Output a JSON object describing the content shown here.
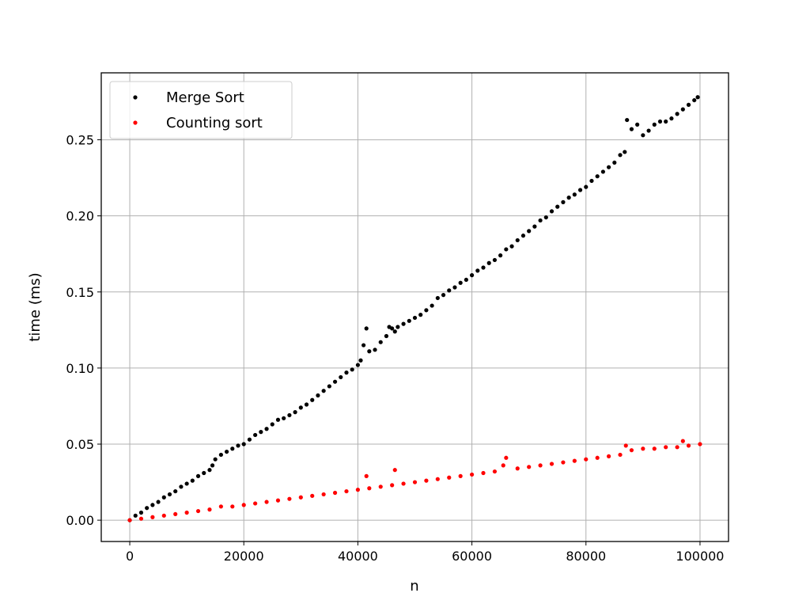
{
  "chart_data": {
    "type": "scatter",
    "xlabel": "n",
    "ylabel": "time (ms)",
    "xlim": [
      -5000,
      105000
    ],
    "ylim": [
      -0.014,
      0.294
    ],
    "xticks": [
      0,
      20000,
      40000,
      60000,
      80000,
      100000
    ],
    "yticks": [
      0.0,
      0.05,
      0.1,
      0.15,
      0.2,
      0.25
    ],
    "xtick_labels": [
      "0",
      "20000",
      "40000",
      "60000",
      "80000",
      "100000"
    ],
    "ytick_labels": [
      "0.00",
      "0.05",
      "0.10",
      "0.15",
      "0.20",
      "0.25"
    ],
    "grid": true,
    "legend_position": "top-left",
    "series": [
      {
        "name": "Merge Sort",
        "color": "#000000",
        "x": [
          0,
          1000,
          2000,
          3000,
          4000,
          5000,
          6000,
          7000,
          8000,
          9000,
          10000,
          11000,
          12000,
          13000,
          14000,
          14500,
          15000,
          16000,
          17000,
          18000,
          19000,
          20000,
          21000,
          22000,
          23000,
          24000,
          25000,
          26000,
          27000,
          28000,
          29000,
          30000,
          31000,
          32000,
          33000,
          34000,
          35000,
          36000,
          37000,
          38000,
          39000,
          40000,
          40500,
          41000,
          41500,
          42000,
          43000,
          44000,
          45000,
          45500,
          46000,
          46500,
          47000,
          48000,
          49000,
          50000,
          51000,
          52000,
          53000,
          54000,
          55000,
          56000,
          57000,
          58000,
          59000,
          60000,
          61000,
          62000,
          63000,
          64000,
          65000,
          66000,
          67000,
          68000,
          69000,
          70000,
          71000,
          72000,
          73000,
          74000,
          75000,
          76000,
          77000,
          78000,
          79000,
          80000,
          81000,
          82000,
          83000,
          84000,
          85000,
          86000,
          86800,
          87200,
          88000,
          89000,
          90000,
          91000,
          92000,
          93000,
          94000,
          95000,
          96000,
          97000,
          98000,
          99000,
          99600
        ],
        "y": [
          0.0,
          0.003,
          0.005,
          0.008,
          0.01,
          0.012,
          0.015,
          0.017,
          0.019,
          0.022,
          0.024,
          0.026,
          0.029,
          0.031,
          0.033,
          0.036,
          0.04,
          0.043,
          0.045,
          0.047,
          0.049,
          0.05,
          0.053,
          0.056,
          0.058,
          0.06,
          0.063,
          0.066,
          0.067,
          0.069,
          0.071,
          0.074,
          0.076,
          0.079,
          0.082,
          0.085,
          0.088,
          0.091,
          0.094,
          0.097,
          0.099,
          0.102,
          0.105,
          0.115,
          0.126,
          0.111,
          0.112,
          0.117,
          0.121,
          0.127,
          0.126,
          0.124,
          0.127,
          0.129,
          0.131,
          0.133,
          0.135,
          0.138,
          0.141,
          0.146,
          0.148,
          0.151,
          0.153,
          0.156,
          0.158,
          0.161,
          0.164,
          0.166,
          0.169,
          0.171,
          0.174,
          0.178,
          0.18,
          0.184,
          0.187,
          0.19,
          0.193,
          0.197,
          0.199,
          0.203,
          0.206,
          0.209,
          0.212,
          0.214,
          0.217,
          0.219,
          0.223,
          0.226,
          0.229,
          0.232,
          0.235,
          0.24,
          0.242,
          0.263,
          0.257,
          0.26,
          0.253,
          0.256,
          0.26,
          0.262,
          0.262,
          0.264,
          0.267,
          0.27,
          0.273,
          0.276,
          0.278
        ]
      },
      {
        "name": "Counting sort",
        "color": "#ff0000",
        "x": [
          0,
          2000,
          4000,
          6000,
          8000,
          10000,
          12000,
          14000,
          16000,
          18000,
          20000,
          22000,
          24000,
          26000,
          28000,
          30000,
          32000,
          34000,
          36000,
          38000,
          40000,
          41500,
          42000,
          44000,
          46000,
          46500,
          48000,
          50000,
          52000,
          54000,
          56000,
          58000,
          60000,
          62000,
          64000,
          65500,
          66000,
          68000,
          70000,
          72000,
          74000,
          76000,
          78000,
          80000,
          82000,
          84000,
          86000,
          87000,
          88000,
          90000,
          92000,
          94000,
          96000,
          97000,
          98000,
          100000
        ],
        "y": [
          0.0,
          0.001,
          0.002,
          0.003,
          0.004,
          0.005,
          0.006,
          0.007,
          0.009,
          0.009,
          0.01,
          0.011,
          0.012,
          0.013,
          0.014,
          0.015,
          0.016,
          0.017,
          0.018,
          0.019,
          0.02,
          0.029,
          0.021,
          0.022,
          0.023,
          0.033,
          0.024,
          0.025,
          0.026,
          0.027,
          0.028,
          0.029,
          0.03,
          0.031,
          0.032,
          0.036,
          0.041,
          0.034,
          0.035,
          0.036,
          0.037,
          0.038,
          0.039,
          0.04,
          0.041,
          0.042,
          0.043,
          0.049,
          0.046,
          0.047,
          0.047,
          0.048,
          0.048,
          0.052,
          0.049,
          0.05
        ]
      }
    ]
  }
}
